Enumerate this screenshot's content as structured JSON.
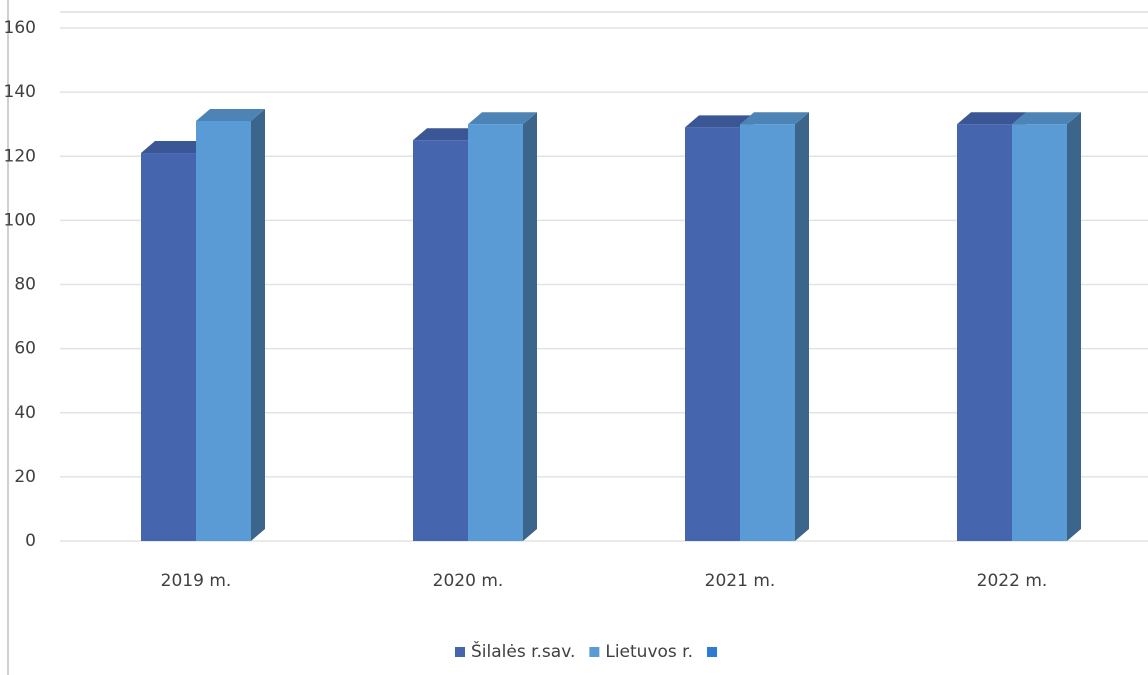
{
  "chart_data": {
    "type": "bar3d",
    "categories": [
      "2019 m.",
      "2020 m.",
      "2021 m.",
      "2022 m."
    ],
    "series": [
      {
        "name": "Šilalės r.sav.",
        "color": "#4565ae",
        "values": [
          121,
          125,
          129,
          130
        ]
      },
      {
        "name": "Lietuvos r.",
        "color": "#5b9bd5",
        "values": [
          131,
          130,
          130,
          130
        ]
      },
      {
        "name": null,
        "color": "#2e7bd6",
        "values": [
          null,
          null,
          null,
          null
        ]
      }
    ],
    "ylim": [
      0,
      160
    ],
    "yticks": [
      0,
      20,
      40,
      60,
      80,
      100,
      120,
      140,
      160
    ],
    "grid": true,
    "legend": "bottom"
  }
}
